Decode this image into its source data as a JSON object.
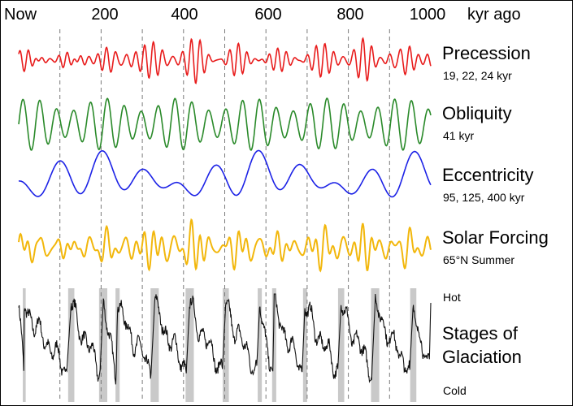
{
  "colors": {
    "precession": "#e81c1c",
    "obliquity": "#2a8a2a",
    "eccentricity": "#1c22e6",
    "solar_forcing": "#f2b70c",
    "glaciation": "#111111",
    "interglacial_band": "#c9c9c9"
  },
  "chart_data": {
    "type": "line",
    "xaxis": {
      "tick_labels": [
        "Now",
        "200",
        "400",
        "600",
        "800",
        "1000"
      ],
      "tick_values": [
        0,
        200,
        400,
        600,
        800,
        1000
      ],
      "unit_label": "kyr ago",
      "range": [
        0,
        1000
      ],
      "grid": true,
      "grid_values": [
        100,
        200,
        300,
        400,
        500,
        600,
        700,
        800,
        900
      ]
    },
    "series": [
      {
        "key": "precession",
        "name": "Precession",
        "sublabel": "19, 22, 24 kyr",
        "periods_kyr": [
          19,
          22,
          24
        ],
        "amplitude_envelope_period_kyr": 100
      },
      {
        "key": "obliquity",
        "name": "Obliquity",
        "sublabel": "41 kyr",
        "periods_kyr": [
          41
        ]
      },
      {
        "key": "eccentricity",
        "name": "Eccentricity",
        "sublabel": "95, 125, 400 kyr",
        "periods_kyr": [
          95,
          125,
          400
        ]
      },
      {
        "key": "solar_forcing",
        "name": "Solar Forcing",
        "sublabel": "65°N Summer"
      },
      {
        "key": "glaciation",
        "name": "Stages of Glaciation",
        "name_lines": [
          "Stages of",
          "Glaciation"
        ],
        "top_label": "Hot",
        "bottom_label": "Cold",
        "interglacials_kyr": [
          [
            10,
            17
          ],
          [
            120,
            135
          ],
          [
            195,
            215
          ],
          [
            235,
            245
          ],
          [
            320,
            340
          ],
          [
            405,
            425
          ],
          [
            495,
            510
          ],
          [
            580,
            590
          ],
          [
            615,
            625
          ],
          [
            690,
            700
          ],
          [
            775,
            790
          ],
          [
            855,
            875
          ],
          [
            950,
            965
          ]
        ]
      }
    ]
  }
}
